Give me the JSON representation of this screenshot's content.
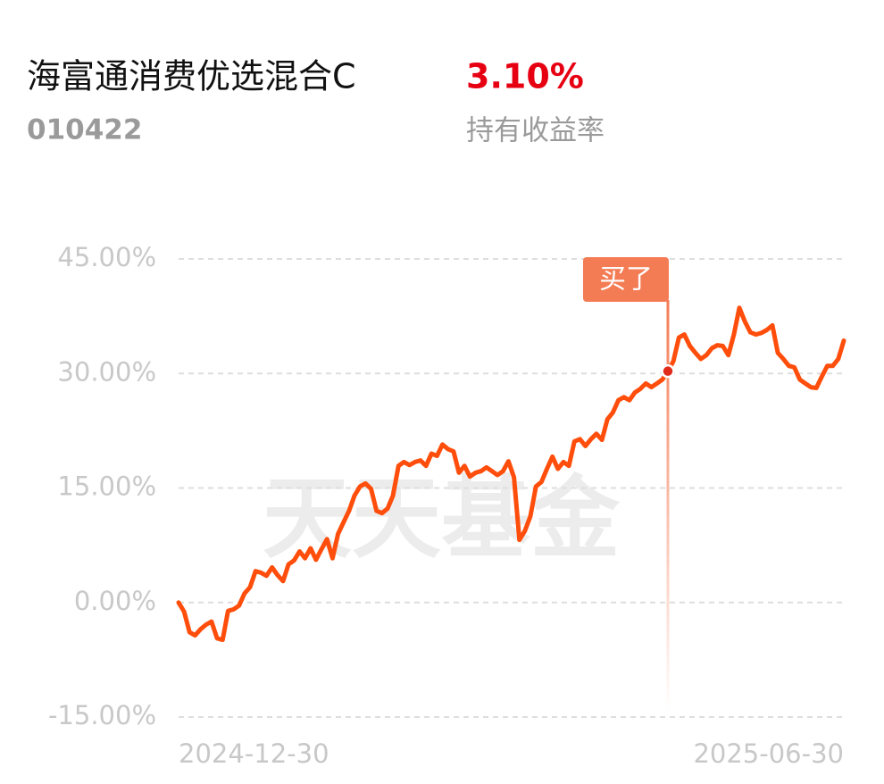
{
  "fund": {
    "name": "海富通消费优选混合C",
    "code": "010422",
    "return": "3.10%",
    "return_label": "持有收益率"
  },
  "chart_data": {
    "type": "line",
    "watermark": "天天基金",
    "categories": [
      "2024-12-30",
      null,
      null,
      null,
      null,
      null,
      null,
      null,
      null,
      null,
      null,
      null,
      null,
      null,
      null,
      null,
      null,
      null,
      null,
      null,
      null,
      null,
      null,
      null,
      null,
      null,
      null,
      null,
      null,
      null,
      null,
      null,
      null,
      null,
      null,
      null,
      null,
      null,
      null,
      null,
      null,
      null,
      null,
      null,
      null,
      null,
      null,
      null,
      null,
      null,
      null,
      null,
      null,
      null,
      null,
      null,
      null,
      null,
      null,
      null,
      null,
      null,
      null,
      null,
      null,
      null,
      null,
      null,
      null,
      null,
      null,
      null,
      null,
      null,
      null,
      null,
      null,
      null,
      null,
      null,
      null,
      null,
      null,
      null,
      null,
      null,
      null,
      null,
      null,
      null,
      null,
      null,
      null,
      null,
      null,
      null,
      null,
      null,
      null,
      null,
      null,
      null,
      null,
      null,
      null,
      null,
      null,
      null,
      null,
      null,
      null,
      null,
      null,
      null,
      null,
      null,
      null,
      null,
      null,
      null,
      null,
      "2025-06-30"
    ],
    "series": [
      {
        "color": "#ff4e0c",
        "values": [
          0,
          -1.2,
          -3.9,
          -4.3,
          -3.5,
          -2.9,
          -2.5,
          -4.7,
          -4.9,
          -1.1,
          -0.9,
          -0.4,
          1.2,
          2.0,
          4.1,
          3.9,
          3.5,
          4.6,
          3.6,
          2.8,
          5.0,
          5.5,
          6.7,
          5.8,
          7.1,
          5.6,
          7.0,
          8.3,
          5.8,
          9.0,
          10.5,
          12.0,
          14.0,
          15.2,
          15.6,
          14.9,
          12.0,
          11.7,
          12.3,
          14.0,
          17.9,
          18.4,
          18.0,
          18.4,
          18.6,
          17.9,
          19.5,
          19.2,
          20.7,
          20.1,
          19.8,
          17.0,
          17.9,
          16.5,
          17.0,
          17.2,
          17.7,
          17.2,
          16.7,
          17.2,
          18.5,
          16.4,
          8.2,
          9.4,
          11.3,
          15.2,
          15.8,
          17.5,
          19.1,
          17.5,
          18.4,
          17.9,
          21.1,
          21.4,
          20.5,
          21.4,
          22.1,
          21.3,
          24.0,
          24.9,
          26.5,
          26.9,
          26.5,
          27.5,
          28.0,
          28.7,
          28.2,
          28.7,
          29.2,
          30.3,
          31.6,
          34.7,
          35.1,
          33.6,
          32.7,
          31.9,
          32.4,
          33.3,
          33.7,
          33.6,
          32.4,
          35.1,
          38.6,
          36.8,
          35.4,
          35.1,
          35.3,
          35.7,
          36.3,
          32.7,
          31.9,
          31.0,
          30.8,
          29.2,
          28.7,
          28.2,
          28.1,
          29.6,
          31.0,
          31.0,
          31.9,
          34.3
        ]
      }
    ],
    "annotations": [
      {
        "text": "买了",
        "at": 89
      }
    ],
    "ylim": [
      -15,
      45
    ],
    "yticks": [
      {
        "value": -15,
        "label": "-15.00%"
      },
      {
        "value": 0,
        "label": "0.00%"
      },
      {
        "value": 15,
        "label": "15.00%"
      },
      {
        "value": 30,
        "label": "30.00%"
      },
      {
        "value": 45,
        "label": "45.00%"
      }
    ],
    "grid": true
  }
}
